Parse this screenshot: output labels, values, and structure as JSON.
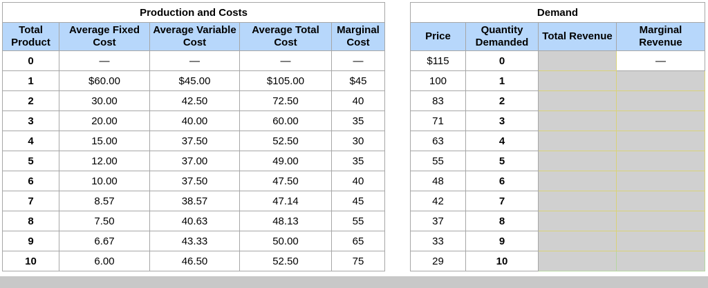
{
  "production": {
    "title": "Production and Costs",
    "headers": [
      "Total Product",
      "Average Fixed Cost",
      "Average Variable Cost",
      "Average Total Cost",
      "Marginal Cost"
    ],
    "rows": [
      [
        "0",
        "—",
        "—",
        "—",
        "—"
      ],
      [
        "1",
        "$60.00",
        "$45.00",
        "$105.00",
        "$45"
      ],
      [
        "2",
        "30.00",
        "42.50",
        "72.50",
        "40"
      ],
      [
        "3",
        "20.00",
        "40.00",
        "60.00",
        "35"
      ],
      [
        "4",
        "15.00",
        "37.50",
        "52.50",
        "30"
      ],
      [
        "5",
        "12.00",
        "37.00",
        "49.00",
        "35"
      ],
      [
        "6",
        "10.00",
        "37.50",
        "47.50",
        "40"
      ],
      [
        "7",
        "8.57",
        "38.57",
        "47.14",
        "45"
      ],
      [
        "8",
        "7.50",
        "40.63",
        "48.13",
        "55"
      ],
      [
        "9",
        "6.67",
        "43.33",
        "50.00",
        "65"
      ],
      [
        "10",
        "6.00",
        "46.50",
        "52.50",
        "75"
      ]
    ]
  },
  "demand": {
    "title": "Demand",
    "headers": [
      "Price",
      "Quantity Demanded",
      "Total Revenue",
      "Marginal Revenue"
    ],
    "rows": [
      [
        "$115",
        "0",
        "",
        "—"
      ],
      [
        "100",
        "1",
        "",
        ""
      ],
      [
        "83",
        "2",
        "",
        ""
      ],
      [
        "71",
        "3",
        "",
        ""
      ],
      [
        "63",
        "4",
        "",
        ""
      ],
      [
        "55",
        "5",
        "",
        ""
      ],
      [
        "48",
        "6",
        "",
        ""
      ],
      [
        "42",
        "7",
        "",
        ""
      ],
      [
        "37",
        "8",
        "",
        ""
      ],
      [
        "33",
        "9",
        "",
        ""
      ],
      [
        "29",
        "10",
        "",
        ""
      ]
    ]
  }
}
